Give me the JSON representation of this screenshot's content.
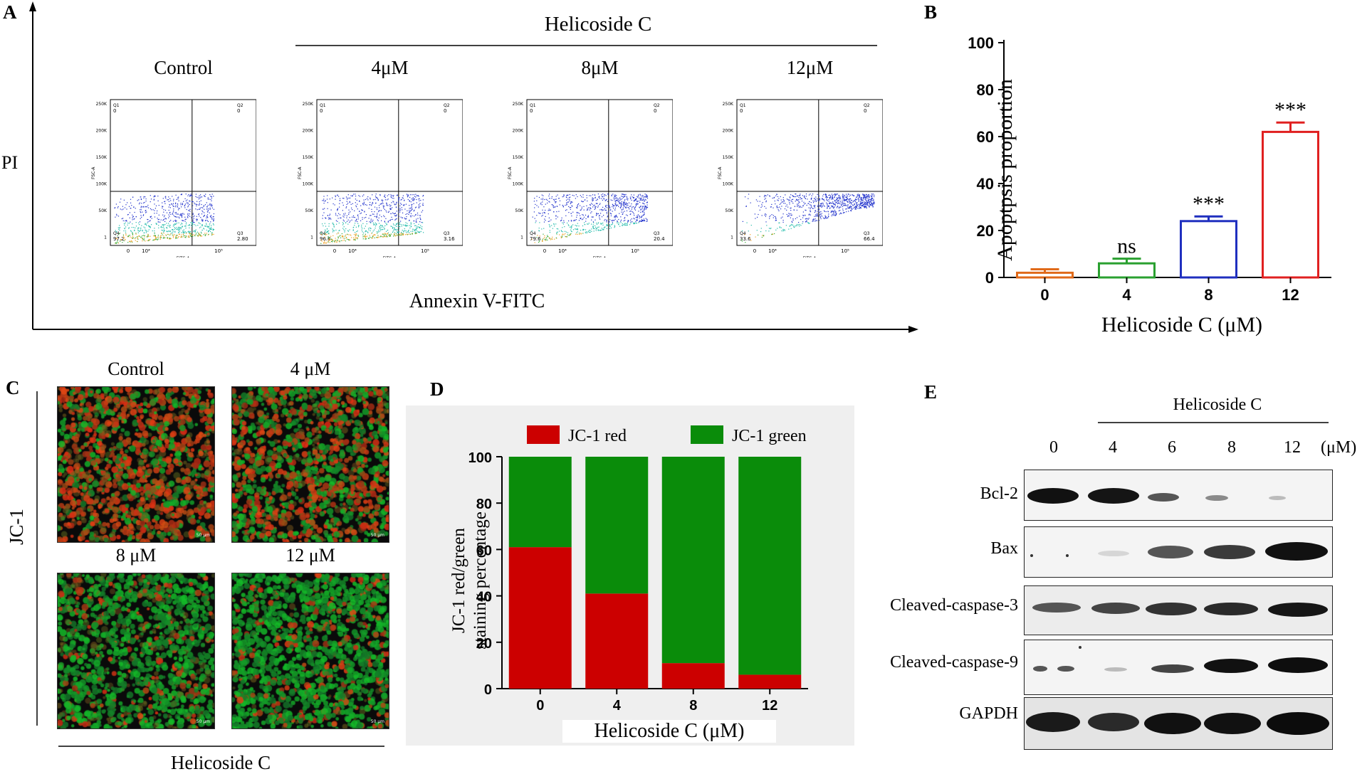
{
  "panels": {
    "A": "A",
    "B": "B",
    "C": "C",
    "D": "D",
    "E": "E"
  },
  "panelA": {
    "group_label": "Helicoside C",
    "y_axis": "PI",
    "x_axis": "Annexin V-FITC",
    "plots": [
      {
        "title": "Control",
        "q1": "Q1",
        "q1v": "0",
        "q2": "Q2",
        "q2v": "0",
        "q3": "Q3",
        "q3v": "2.80",
        "q4": "Q4",
        "q4v": "97.2",
        "seed": 1,
        "spread": 0.25
      },
      {
        "title": "4μM",
        "q1": "Q1",
        "q1v": "0",
        "q2": "Q2",
        "q2v": "0",
        "q3": "Q3",
        "q3v": "3.16",
        "q4": "Q4",
        "q4v": "96.8",
        "seed": 2,
        "spread": 0.3
      },
      {
        "title": "8μM",
        "q1": "Q1",
        "q1v": "0",
        "q2": "Q2",
        "q2v": "0",
        "q3": "Q3",
        "q3v": "20.4",
        "q4": "Q4",
        "q4v": "79.6",
        "seed": 3,
        "spread": 0.55
      },
      {
        "title": "12μM",
        "q1": "Q1",
        "q1v": "0",
        "q2": "Q2",
        "q2v": "0",
        "q3": "Q3",
        "q3v": "66.4",
        "q4": "Q4",
        "q4v": "33.6",
        "seed": 4,
        "spread": 0.85
      }
    ],
    "yticks": [
      "250K",
      "200K",
      "150K",
      "100K",
      "50K",
      "1"
    ],
    "xticks": [
      "0",
      "10⁴",
      "10⁵"
    ],
    "ylab": "FSC-A",
    "xlab": "FITC-A"
  },
  "chart_data": [
    {
      "type": "bar",
      "panel": "B",
      "categories": [
        "0",
        "4",
        "8",
        "12"
      ],
      "values": [
        2,
        6,
        24,
        62
      ],
      "errors": [
        1.5,
        2,
        2,
        4
      ],
      "annotations": [
        "",
        "ns",
        "***",
        "***"
      ],
      "colors": [
        "#e06a1a",
        "#2aa030",
        "#1f2fbf",
        "#e02020"
      ],
      "xlabel": "Helicoside C (μM)",
      "ylabel": "Apoptpsis proportion",
      "ylim": [
        0,
        100
      ],
      "yticks": [
        "0",
        "20",
        "40",
        "60",
        "80",
        "100"
      ]
    },
    {
      "type": "bar",
      "panel": "D",
      "stacked": true,
      "categories": [
        "0",
        "4",
        "8",
        "12"
      ],
      "series": [
        {
          "name": "JC-1 red",
          "values": [
            61,
            41,
            11,
            6
          ],
          "color": "#cc0000"
        },
        {
          "name": "JC-1 green",
          "values": [
            39,
            59,
            89,
            94
          ],
          "color": "#0a8c0a"
        }
      ],
      "xlabel": "Helicoside C (μM)",
      "ylabel": "JC-1 red/green staining percentage",
      "ylabel_line1": "JC-1 red/green",
      "ylabel_line2": "staining percentage",
      "ylim": [
        0,
        100
      ],
      "yticks": [
        "0",
        "20",
        "40",
        "60",
        "80",
        "100"
      ]
    }
  ],
  "panelC": {
    "side_label": "JC-1",
    "bottom_label": "Helicoside C",
    "images": [
      {
        "title": "Control",
        "scale": "50 μm"
      },
      {
        "title": "4 μM",
        "scale": "50 μm"
      },
      {
        "title": "8 μM",
        "scale": "50 μm"
      },
      {
        "title": "12 μM",
        "scale": "50 μm"
      }
    ]
  },
  "panelE": {
    "group_label": "Helicoside C",
    "lanes": [
      "0",
      "4",
      "6",
      "8",
      "12"
    ],
    "unit": "(μM)",
    "proteins": [
      "Bcl-2",
      "Bax",
      "Cleaved-caspase-3",
      "Cleaved-caspase-9",
      "GAPDH"
    ]
  }
}
